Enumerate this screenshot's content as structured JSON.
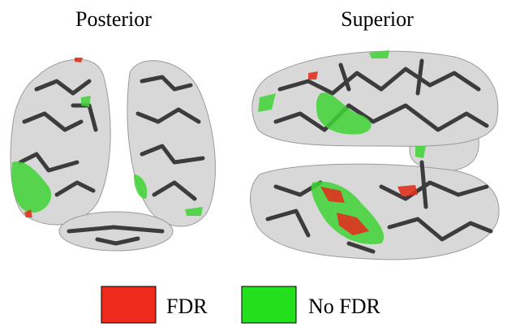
{
  "panels": [
    {
      "title": "Posterior"
    },
    {
      "title": "Superior"
    }
  ],
  "legend": [
    {
      "name": "FDR",
      "color": "#ee2a1a"
    },
    {
      "name": "No FDR",
      "color": "#22e01c"
    }
  ]
}
